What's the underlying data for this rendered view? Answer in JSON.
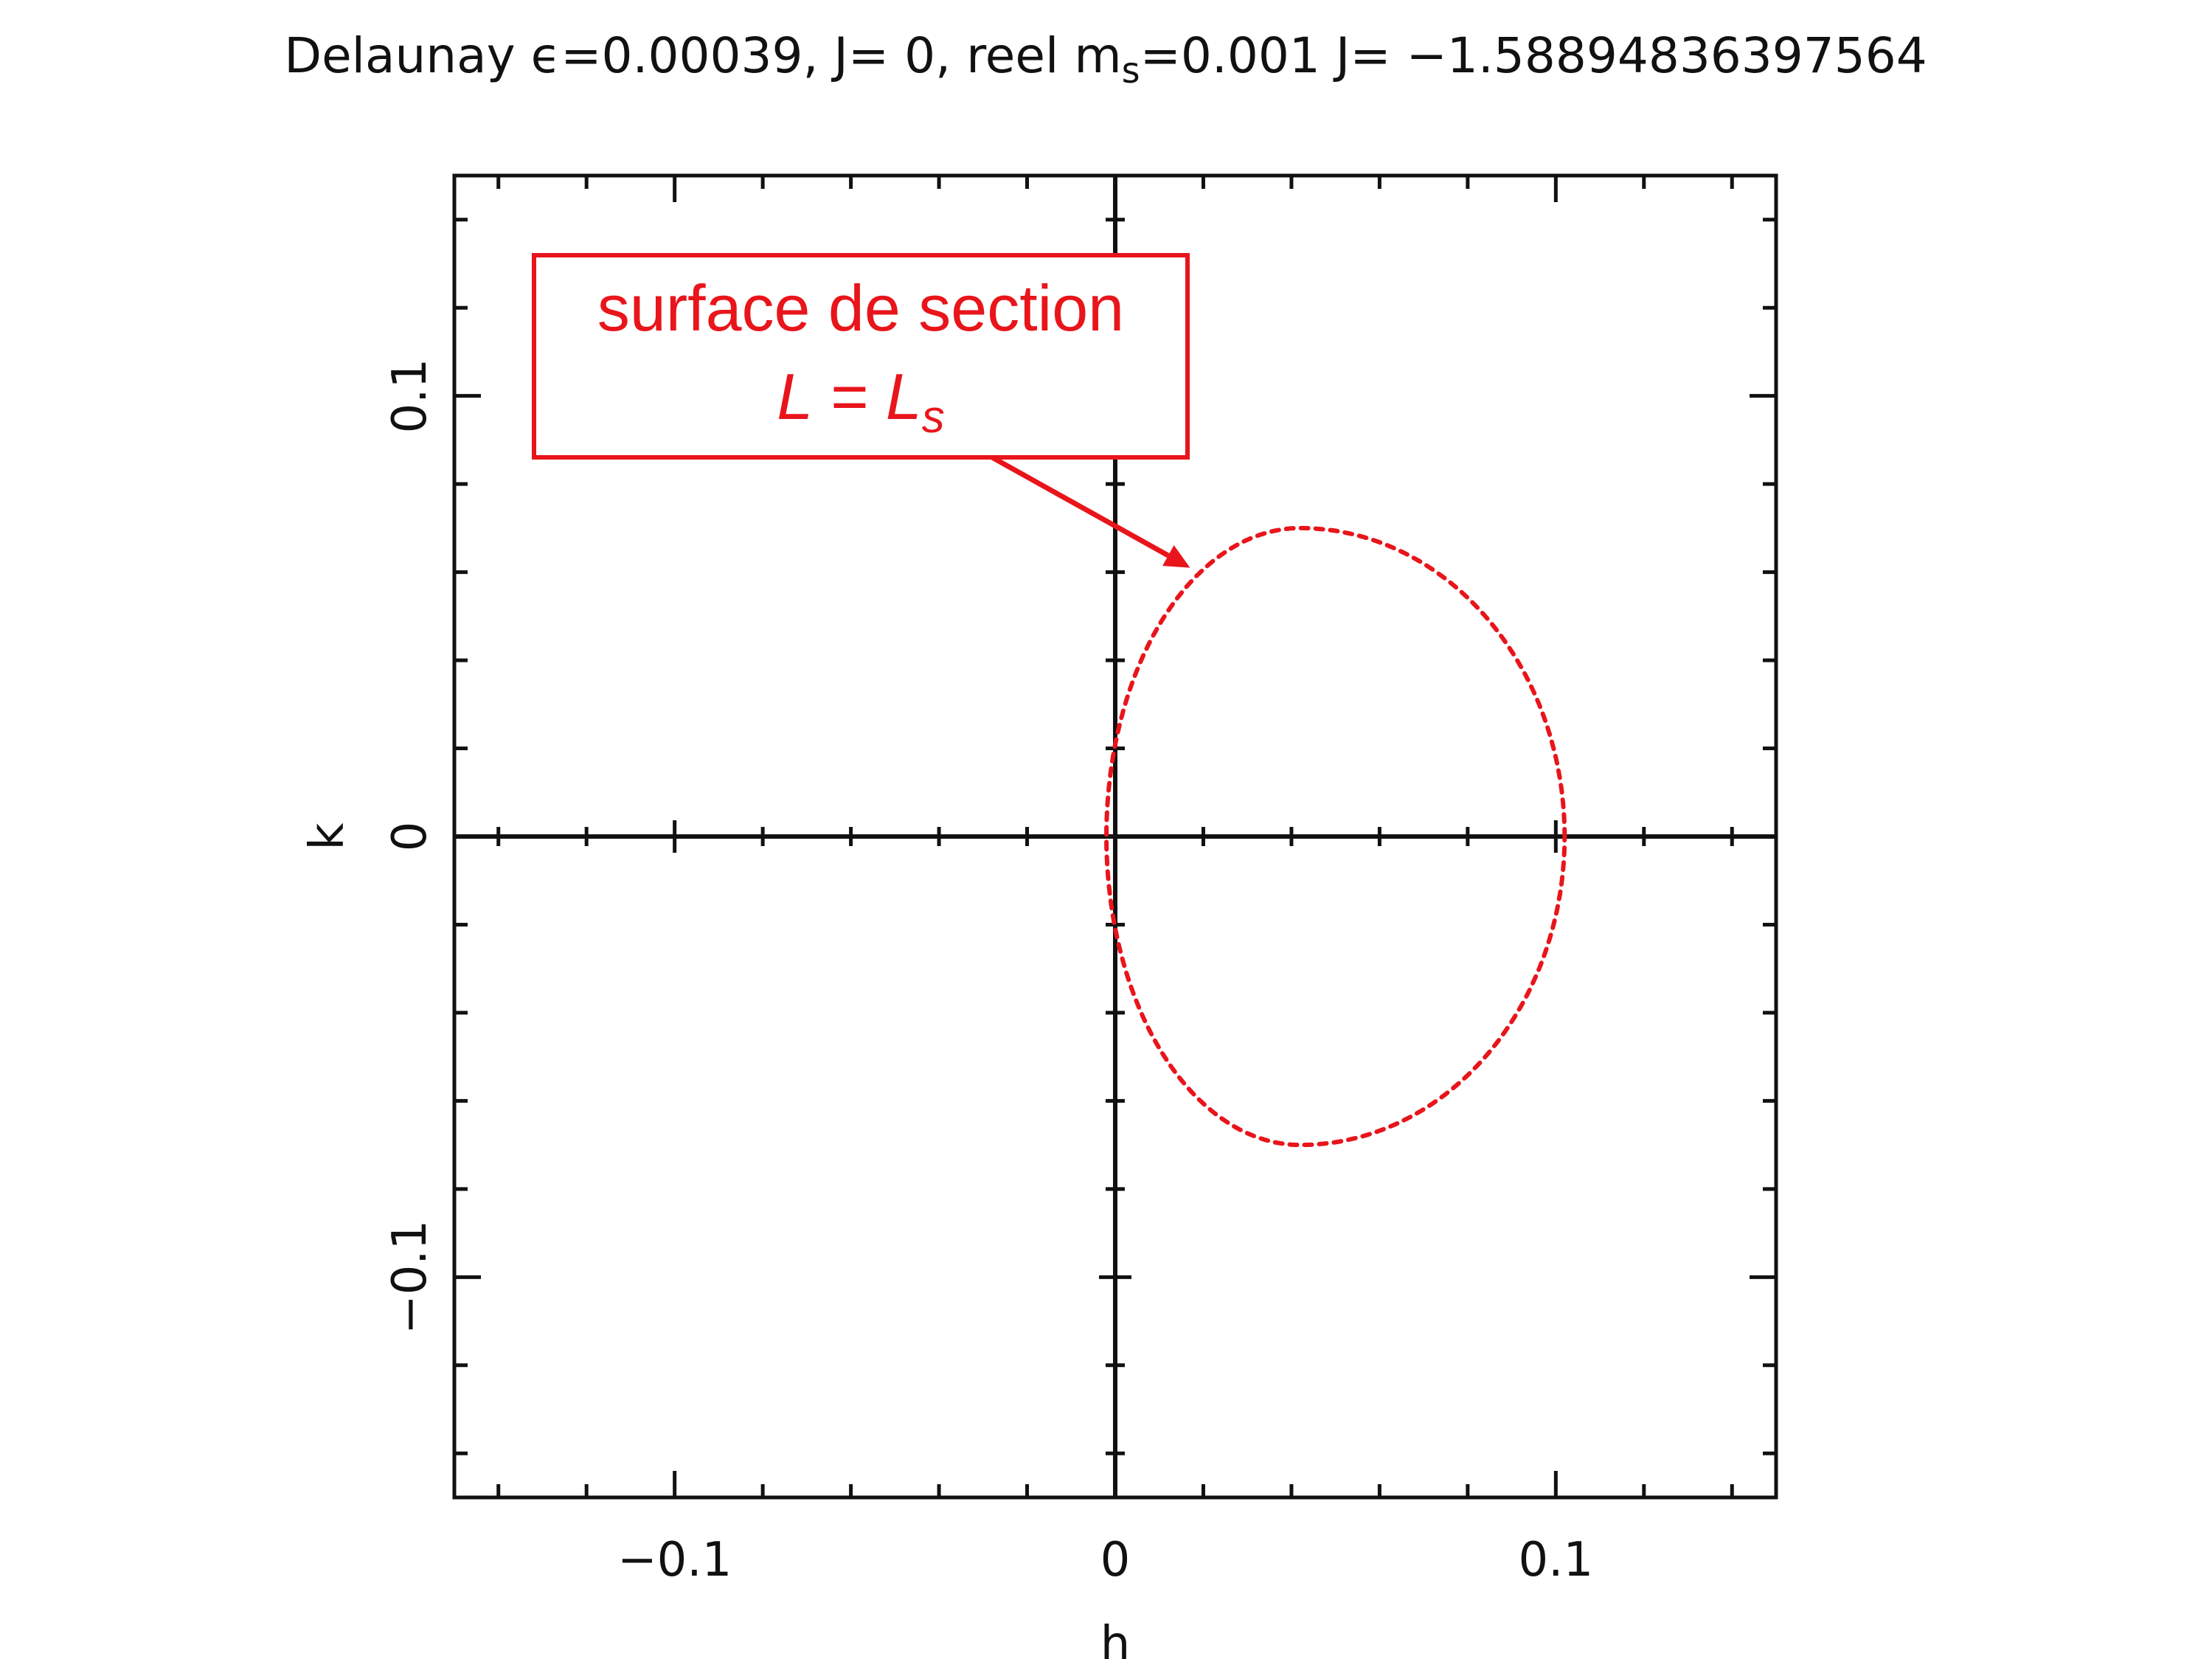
{
  "chart_data": {
    "type": "scatter",
    "title": {
      "prefix": "Delaunay ",
      "epsilon_symbol": "ϵ",
      "epsilon_value": "=0.00039, J= 0, reel m",
      "m_subscript": "s",
      "rest": "=0.001 J= −1.58894836397564"
    },
    "xlabel": "h",
    "ylabel": "k",
    "xlim": [
      -0.15,
      0.15
    ],
    "ylim": [
      -0.15,
      0.15
    ],
    "x_ticks": [
      -0.1,
      0,
      0.1
    ],
    "y_ticks": [
      -0.1,
      0,
      0.1
    ],
    "x_tick_labels": [
      "−0.1",
      "0",
      "0.1"
    ],
    "y_tick_labels": [
      "−0.1",
      "0",
      "0.1"
    ],
    "grid": false,
    "zero_axes": true,
    "series": [
      {
        "style": "dotted-dashed",
        "color": "#e8151b",
        "shape": "closed-curve",
        "x_min": -0.002,
        "x_max": 0.102,
        "y_min": -0.07,
        "y_max": 0.07,
        "x_at_y_extremes": 0.042
      }
    ],
    "annotations": [
      {
        "line1": "surface de section",
        "line2_main": "L = L",
        "line2_sub": "s",
        "color": "#e8151b",
        "points_to": {
          "x": 0.017,
          "y": 0.061
        }
      }
    ]
  }
}
